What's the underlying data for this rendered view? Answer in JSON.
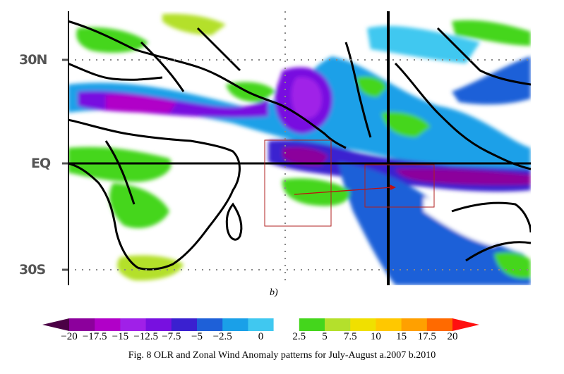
{
  "map": {
    "lat_labels": [
      "30N",
      "EQ",
      "30S"
    ],
    "panel_label": "b)"
  },
  "colorbar": {
    "ticks": [
      "−20",
      "−17.5",
      "−15",
      "−12.5",
      "−7.5",
      "−5",
      "−2.5",
      "0",
      "2.5",
      "5",
      "7.5",
      "10",
      "15",
      "17.5",
      "20"
    ],
    "colors": [
      "#4b0046",
      "#8c009c",
      "#b100c8",
      "#a020e8",
      "#7810e0",
      "#3a20d0",
      "#1e60d8",
      "#1aa0e8",
      "#40c8f0",
      "#ffffff",
      "#44d61c",
      "#b4e02c",
      "#f0e000",
      "#ffc800",
      "#ffa000",
      "#ff6a00",
      "#ff1010"
    ]
  },
  "caption": "Fig. 8 OLR and Zonal Wind Anomaly patterns for July-August a.2007 b.2010"
}
